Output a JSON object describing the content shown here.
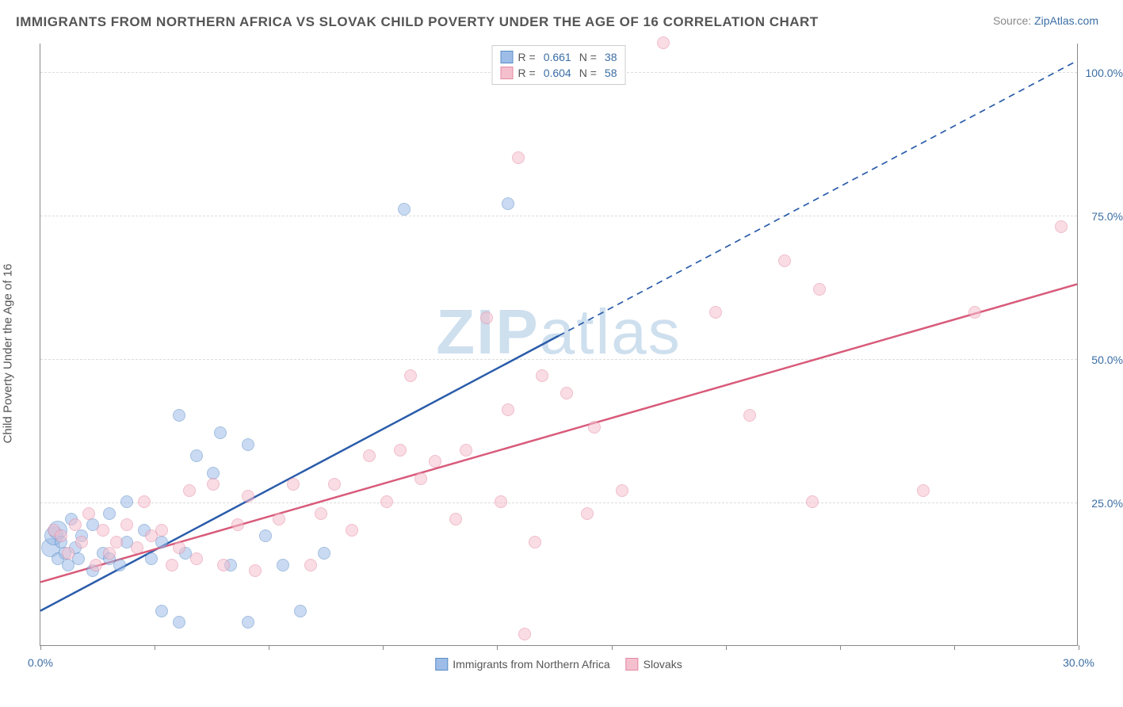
{
  "title": "IMMIGRANTS FROM NORTHERN AFRICA VS SLOVAK CHILD POVERTY UNDER THE AGE OF 16 CORRELATION CHART",
  "source_label": "Source: ",
  "source_link": "ZipAtlas.com",
  "ylabel": "Child Poverty Under the Age of 16",
  "watermark_bold": "ZIP",
  "watermark_light": "atlas",
  "chart": {
    "type": "scatter",
    "xlim": [
      0,
      30
    ],
    "ylim": [
      0,
      105
    ],
    "xtick_positions": [
      0,
      3.3,
      6.6,
      9.9,
      13.2,
      16.5,
      19.8,
      23.1,
      26.4,
      30
    ],
    "xtick_labels": {
      "0": "0.0%",
      "30": "30.0%"
    },
    "ytick_positions": [
      25,
      50,
      75,
      100
    ],
    "ytick_labels": {
      "25": "25.0%",
      "50": "50.0%",
      "75": "75.0%",
      "100": "100.0%"
    },
    "background_color": "#ffffff",
    "grid_color": "#dddddd",
    "marker_radius": 8,
    "marker_radius_large": 12,
    "marker_opacity": 0.55,
    "series": [
      {
        "name": "Immigrants from Northern Africa",
        "color_fill": "#9dbde8",
        "color_stroke": "#5a8cc7",
        "line_color": "#2a5caa",
        "line_width": 2.5,
        "line_dash_after_x": 15,
        "r_label": "R =",
        "r_value": "0.661",
        "n_label": "N =",
        "n_value": "38",
        "regression": {
          "x1": 0,
          "y1": 6,
          "x2": 15,
          "y2": 54,
          "x3": 30,
          "y3": 102
        },
        "points": [
          [
            0.3,
            17
          ],
          [
            0.4,
            19
          ],
          [
            0.5,
            20
          ],
          [
            0.5,
            15
          ],
          [
            0.6,
            18
          ],
          [
            0.7,
            16
          ],
          [
            0.8,
            14
          ],
          [
            0.9,
            22
          ],
          [
            1.0,
            17
          ],
          [
            1.1,
            15
          ],
          [
            1.2,
            19
          ],
          [
            1.5,
            13
          ],
          [
            1.5,
            21
          ],
          [
            1.8,
            16
          ],
          [
            2.0,
            23
          ],
          [
            2.0,
            15
          ],
          [
            2.3,
            14
          ],
          [
            2.5,
            18
          ],
          [
            2.5,
            25
          ],
          [
            3.0,
            20
          ],
          [
            3.2,
            15
          ],
          [
            3.5,
            6
          ],
          [
            3.5,
            18
          ],
          [
            4.0,
            4
          ],
          [
            4.0,
            40
          ],
          [
            4.2,
            16
          ],
          [
            4.5,
            33
          ],
          [
            5.0,
            30
          ],
          [
            5.2,
            37
          ],
          [
            5.5,
            14
          ],
          [
            6.0,
            35
          ],
          [
            6.0,
            4
          ],
          [
            6.5,
            19
          ],
          [
            7.0,
            14
          ],
          [
            7.5,
            6
          ],
          [
            8.2,
            16
          ],
          [
            10.5,
            76
          ],
          [
            13.5,
            77
          ]
        ]
      },
      {
        "name": "Slovaks",
        "color_fill": "#f5c0ce",
        "color_stroke": "#e48aa3",
        "line_color": "#d85a7a",
        "line_width": 2.5,
        "r_label": "R =",
        "r_value": "0.604",
        "n_label": "N =",
        "n_value": "58",
        "regression": {
          "x1": 0,
          "y1": 11,
          "x2": 30,
          "y2": 63
        },
        "points": [
          [
            0.4,
            20
          ],
          [
            0.6,
            19
          ],
          [
            0.8,
            16
          ],
          [
            1.0,
            21
          ],
          [
            1.2,
            18
          ],
          [
            1.4,
            23
          ],
          [
            1.6,
            14
          ],
          [
            1.8,
            20
          ],
          [
            2.0,
            16
          ],
          [
            2.2,
            18
          ],
          [
            2.5,
            21
          ],
          [
            2.8,
            17
          ],
          [
            3.0,
            25
          ],
          [
            3.2,
            19
          ],
          [
            3.5,
            20
          ],
          [
            3.8,
            14
          ],
          [
            4.0,
            17
          ],
          [
            4.3,
            27
          ],
          [
            4.5,
            15
          ],
          [
            5.0,
            28
          ],
          [
            5.3,
            14
          ],
          [
            5.7,
            21
          ],
          [
            6.0,
            26
          ],
          [
            6.2,
            13
          ],
          [
            6.9,
            22
          ],
          [
            7.3,
            28
          ],
          [
            7.8,
            14
          ],
          [
            8.1,
            23
          ],
          [
            8.5,
            28
          ],
          [
            9.0,
            20
          ],
          [
            9.5,
            33
          ],
          [
            10.0,
            25
          ],
          [
            10.4,
            34
          ],
          [
            10.7,
            47
          ],
          [
            11.0,
            29
          ],
          [
            11.4,
            32
          ],
          [
            12.0,
            22
          ],
          [
            12.3,
            34
          ],
          [
            12.9,
            57
          ],
          [
            13.3,
            25
          ],
          [
            13.5,
            41
          ],
          [
            13.8,
            85
          ],
          [
            14.0,
            2
          ],
          [
            14.3,
            18
          ],
          [
            14.5,
            47
          ],
          [
            15.2,
            44
          ],
          [
            15.8,
            23
          ],
          [
            16.0,
            38
          ],
          [
            16.8,
            27
          ],
          [
            18.0,
            105
          ],
          [
            19.5,
            58
          ],
          [
            20.5,
            40
          ],
          [
            21.5,
            67
          ],
          [
            22.3,
            25
          ],
          [
            22.5,
            62
          ],
          [
            25.5,
            27
          ],
          [
            27.0,
            58
          ],
          [
            29.5,
            73
          ]
        ]
      }
    ]
  }
}
